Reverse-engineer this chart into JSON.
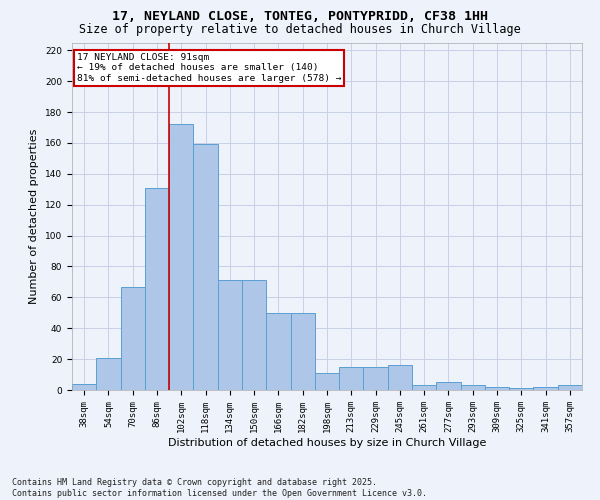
{
  "title": "17, NEYLAND CLOSE, TONTEG, PONTYPRIDD, CF38 1HH",
  "subtitle": "Size of property relative to detached houses in Church Village",
  "xlabel": "Distribution of detached houses by size in Church Village",
  "ylabel": "Number of detached properties",
  "categories": [
    "38sqm",
    "54sqm",
    "70sqm",
    "86sqm",
    "102sqm",
    "118sqm",
    "134sqm",
    "150sqm",
    "166sqm",
    "182sqm",
    "198sqm",
    "213sqm",
    "229sqm",
    "245sqm",
    "261sqm",
    "277sqm",
    "293sqm",
    "309sqm",
    "325sqm",
    "341sqm",
    "357sqm"
  ],
  "values": [
    4,
    21,
    67,
    131,
    172,
    159,
    71,
    71,
    50,
    50,
    11,
    15,
    15,
    16,
    3,
    5,
    3,
    2,
    1,
    2,
    3
  ],
  "bar_color": "#aec6e8",
  "bar_edge_color": "#5a9fd4",
  "annotation_text": "17 NEYLAND CLOSE: 91sqm\n← 19% of detached houses are smaller (140)\n81% of semi-detached houses are larger (578) →",
  "annotation_box_color": "#ffffff",
  "annotation_box_edge_color": "#cc0000",
  "vline_color": "#cc0000",
  "vline_x": 3.5,
  "footnote": "Contains HM Land Registry data © Crown copyright and database right 2025.\nContains public sector information licensed under the Open Government Licence v3.0.",
  "ylim": [
    0,
    225
  ],
  "yticks": [
    0,
    20,
    40,
    60,
    80,
    100,
    120,
    140,
    160,
    180,
    200,
    220
  ],
  "background_color": "#eef2fa",
  "grid_color": "#c8d0e8",
  "title_fontsize": 9.5,
  "subtitle_fontsize": 8.5,
  "axis_label_fontsize": 8,
  "tick_fontsize": 6.5,
  "footnote_fontsize": 6,
  "ylabel_fontsize": 8
}
